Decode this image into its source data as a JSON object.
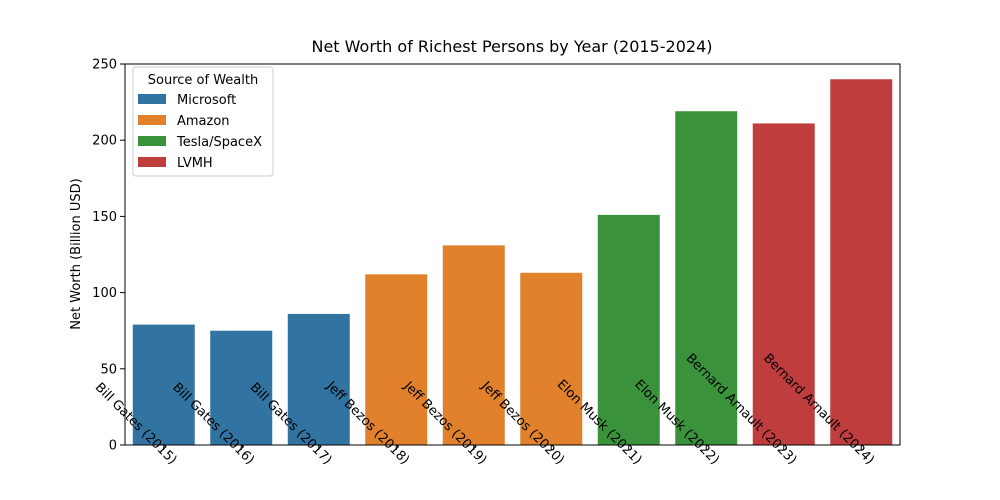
{
  "chart_data": {
    "type": "bar",
    "title": "Net Worth of Richest Persons by Year (2015-2024)",
    "xlabel": "",
    "ylabel": "Net Worth (Billion USD)",
    "ylim": [
      0,
      250
    ],
    "yticks": [
      0,
      50,
      100,
      150,
      200,
      250
    ],
    "categories": [
      "Bill Gates (2015)",
      "Bill Gates (2016)",
      "Bill Gates (2017)",
      "Jeff Bezos (2018)",
      "Jeff Bezos (2019)",
      "Jeff Bezos (2020)",
      "Elon Musk (2021)",
      "Elon Musk (2022)",
      "Bernard Arnault (2023)",
      "Bernard Arnault (2024)"
    ],
    "values": [
      79,
      75,
      86,
      112,
      131,
      113,
      151,
      219,
      211,
      240
    ],
    "groups": [
      "Microsoft",
      "Microsoft",
      "Microsoft",
      "Amazon",
      "Amazon",
      "Amazon",
      "Tesla/SpaceX",
      "Tesla/SpaceX",
      "LVMH",
      "LVMH"
    ],
    "legend": {
      "title": "Source of Wealth",
      "location": "top-left",
      "entries": [
        {
          "name": "Microsoft",
          "color": "#3274a1"
        },
        {
          "name": "Amazon",
          "color": "#e1812c"
        },
        {
          "name": "Tesla/SpaceX",
          "color": "#3a923a"
        },
        {
          "name": "LVMH",
          "color": "#c03d3e"
        }
      ]
    },
    "grid": false
  }
}
